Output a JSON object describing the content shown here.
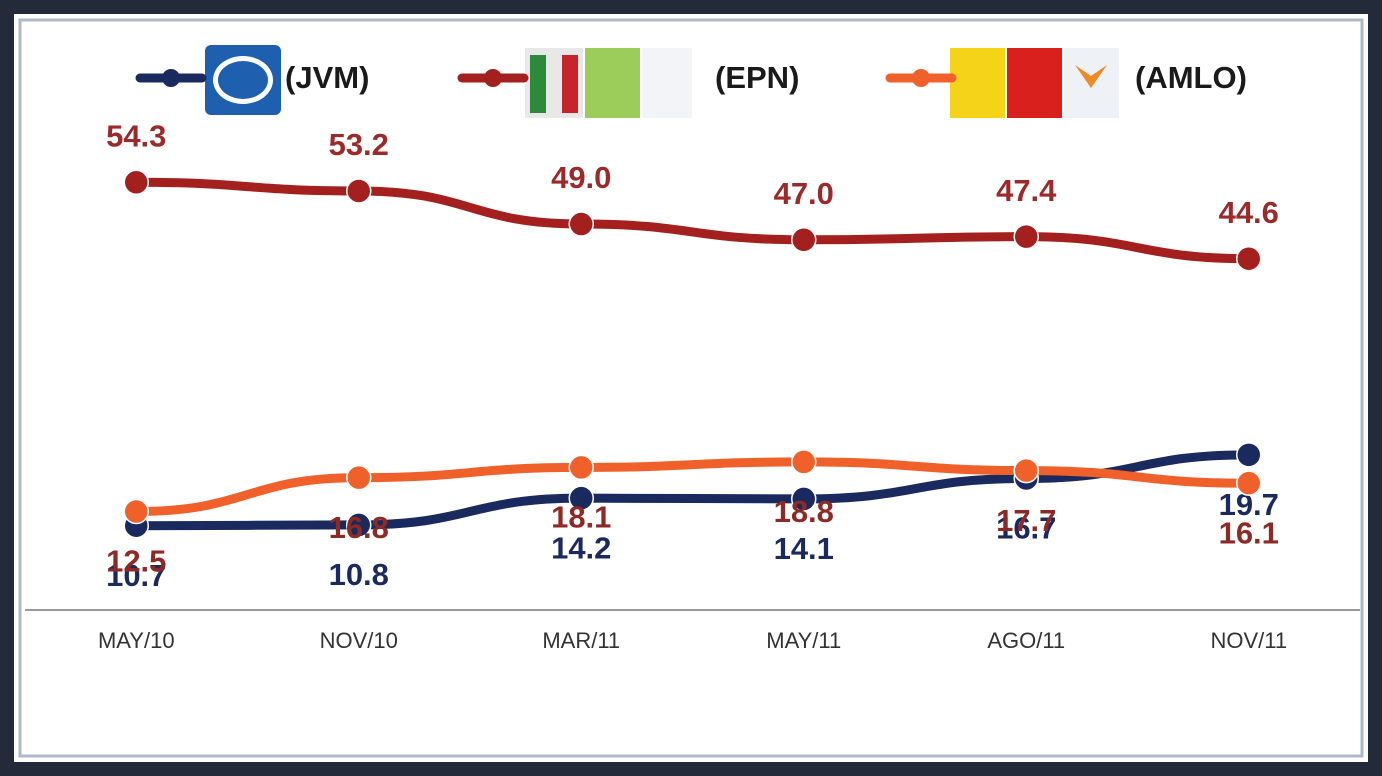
{
  "chart_data": {
    "type": "line",
    "categories": [
      "MAY/10",
      "NOV/10",
      "MAR/11",
      "MAY/11",
      "AGO/11",
      "NOV/11"
    ],
    "series": [
      {
        "name": "(JVM)",
        "color": "#1b2a5e",
        "label_color": "#1b2a5e",
        "values": [
          10.7,
          10.8,
          14.2,
          14.1,
          16.7,
          19.7
        ]
      },
      {
        "name": "(EPN)",
        "color": "#a3201f",
        "label_color": "#9b2a2a",
        "values": [
          54.3,
          53.2,
          49.0,
          47.0,
          47.4,
          44.6
        ],
        "value_labels": [
          "54.3",
          "53.2",
          "49.0",
          "47.0",
          "47.4",
          "44.6"
        ]
      },
      {
        "name": "(AMLO)",
        "color": "#f0602a",
        "label_color": "#8e2a26",
        "values": [
          12.5,
          16.8,
          18.1,
          18.8,
          17.7,
          16.1
        ]
      }
    ],
    "ylim": [
      0,
      65
    ]
  }
}
